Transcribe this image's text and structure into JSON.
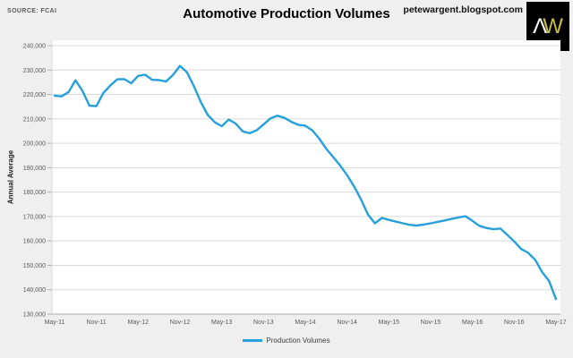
{
  "header": {
    "source_label": "SOURCE: FCAI",
    "title": "Automotive Production Volumes",
    "site": "petewargent.blogspot.com",
    "logo_letter_1": "Λ",
    "logo_letter_2": "W"
  },
  "legend": {
    "label": "Production Volumes"
  },
  "colors": {
    "line": "#25A0DB",
    "logo_bg": "#000000",
    "logo_w": "#CBBD3E",
    "page_bg": "#EFEFEF",
    "plot_bg": "#FFFFFF",
    "gridline": "#D9D9D9",
    "axis": "#ABABAB"
  },
  "chart_data": {
    "type": "line",
    "title": "Automotive Production Volumes",
    "ylabel": "Annual Average",
    "xlabel": "",
    "ylim": [
      130000,
      240000
    ],
    "ytick_step": 10000,
    "grid": true,
    "legend_position": "bottom-center",
    "x_tick_interval": 6,
    "x_tick_labels": [
      "May-11",
      "Nov-11",
      "May-12",
      "Nov-12",
      "May-13",
      "Nov-13",
      "May-14",
      "Nov-14",
      "May-15",
      "Nov-15",
      "May-16",
      "Nov-16",
      "May-17"
    ],
    "series": [
      {
        "name": "Production Volumes",
        "color": "#25A0DB",
        "frequency": "monthly",
        "x_start": "May-11",
        "x_end": "May-17",
        "values": [
          219500,
          219200,
          221000,
          225800,
          221500,
          215400,
          215200,
          220600,
          223700,
          226200,
          226300,
          224600,
          227600,
          228100,
          226000,
          225900,
          225300,
          228000,
          231700,
          229100,
          223400,
          216900,
          211600,
          208600,
          207000,
          209700,
          208100,
          204900,
          204100,
          205300,
          207700,
          210200,
          211300,
          210400,
          208800,
          207600,
          207200,
          205300,
          201900,
          197800,
          194400,
          190900,
          186900,
          182400,
          177000,
          170800,
          167200,
          169400,
          168600,
          167900,
          167200,
          166600,
          166300,
          166700,
          167200,
          167800,
          168400,
          169000,
          169600,
          170100,
          168200,
          166200,
          165300,
          164800,
          165100,
          162500,
          159800,
          156700,
          155100,
          152300,
          147300,
          143600,
          136200
        ]
      }
    ]
  }
}
